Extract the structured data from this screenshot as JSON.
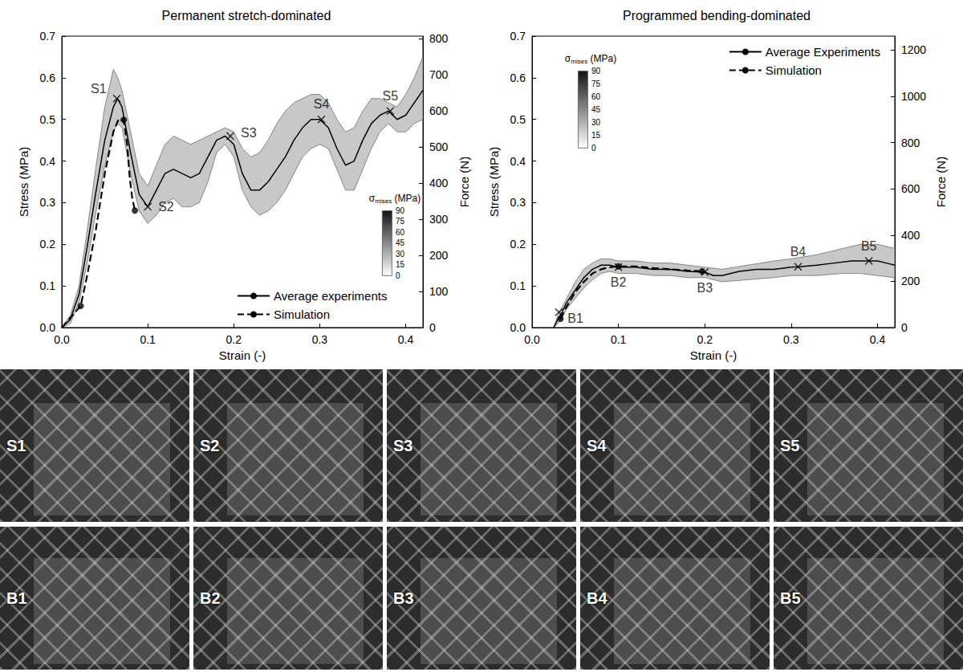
{
  "chart_data": [
    {
      "type": "line",
      "title": "Permanent stretch-dominated",
      "x_label": "Strain (-)",
      "y_label": "Stress (MPa)",
      "y2_label": "Force (N)",
      "xlim": [
        0,
        0.42
      ],
      "ylim": [
        0,
        0.7
      ],
      "y2lim": [
        0,
        807
      ],
      "xticks": [
        {
          "value": 0,
          "label": "0.0"
        },
        0.1,
        0.2,
        0.3,
        0.4
      ],
      "yticks": [
        {
          "value": 0,
          "label": "0.0"
        },
        0.1,
        0.2,
        0.3,
        0.4,
        0.5,
        0.6,
        0.7
      ],
      "y2ticks": [
        0,
        100,
        200,
        300,
        400,
        500,
        600,
        700,
        800
      ],
      "grid": false,
      "legend": "lower right",
      "colorbar": {
        "title": "σmises (MPa)",
        "range": [
          0,
          90
        ],
        "ticks": [
          0,
          15,
          30,
          45,
          60,
          75,
          90
        ]
      },
      "series": [
        {
          "type": "band",
          "color": "#c8c8c8",
          "x": [
            0,
            0.01,
            0.02,
            0.03,
            0.04,
            0.05,
            0.06,
            0.065,
            0.07,
            0.08,
            0.09,
            0.1,
            0.11,
            0.12,
            0.13,
            0.14,
            0.15,
            0.16,
            0.17,
            0.18,
            0.19,
            0.2,
            0.21,
            0.22,
            0.23,
            0.24,
            0.25,
            0.26,
            0.27,
            0.28,
            0.29,
            0.3,
            0.31,
            0.32,
            0.33,
            0.34,
            0.35,
            0.36,
            0.37,
            0.38,
            0.39,
            0.4,
            0.41,
            0.42
          ],
          "upper": [
            0,
            0.03,
            0.1,
            0.24,
            0.39,
            0.53,
            0.62,
            0.6,
            0.57,
            0.47,
            0.37,
            0.34,
            0.39,
            0.44,
            0.46,
            0.45,
            0.44,
            0.45,
            0.46,
            0.47,
            0.48,
            0.47,
            0.43,
            0.41,
            0.42,
            0.45,
            0.49,
            0.52,
            0.54,
            0.55,
            0.56,
            0.56,
            0.54,
            0.5,
            0.47,
            0.48,
            0.52,
            0.55,
            0.55,
            0.54,
            0.53,
            0.56,
            0.6,
            0.65
          ],
          "lower": [
            0,
            0.01,
            0.06,
            0.16,
            0.28,
            0.39,
            0.47,
            0.49,
            0.48,
            0.37,
            0.28,
            0.25,
            0.27,
            0.3,
            0.31,
            0.29,
            0.29,
            0.3,
            0.35,
            0.42,
            0.44,
            0.41,
            0.33,
            0.29,
            0.27,
            0.28,
            0.3,
            0.33,
            0.37,
            0.41,
            0.43,
            0.44,
            0.43,
            0.38,
            0.33,
            0.33,
            0.38,
            0.43,
            0.47,
            0.49,
            0.47,
            0.47,
            0.49,
            0.5
          ]
        },
        {
          "name": "Average experiments",
          "type": "line",
          "color": "#000000",
          "line_style": "solid",
          "x": [
            0,
            0.01,
            0.02,
            0.03,
            0.04,
            0.05,
            0.06,
            0.065,
            0.07,
            0.08,
            0.09,
            0.1,
            0.11,
            0.12,
            0.13,
            0.14,
            0.15,
            0.16,
            0.17,
            0.18,
            0.19,
            0.2,
            0.21,
            0.22,
            0.23,
            0.24,
            0.25,
            0.26,
            0.27,
            0.28,
            0.29,
            0.3,
            0.31,
            0.32,
            0.33,
            0.34,
            0.35,
            0.36,
            0.37,
            0.38,
            0.39,
            0.4,
            0.41,
            0.42
          ],
          "values": [
            0,
            0.02,
            0.08,
            0.2,
            0.33,
            0.45,
            0.53,
            0.55,
            0.53,
            0.42,
            0.32,
            0.29,
            0.33,
            0.37,
            0.38,
            0.37,
            0.36,
            0.37,
            0.41,
            0.45,
            0.46,
            0.44,
            0.37,
            0.33,
            0.33,
            0.35,
            0.38,
            0.41,
            0.45,
            0.48,
            0.5,
            0.5,
            0.48,
            0.43,
            0.39,
            0.4,
            0.45,
            0.49,
            0.51,
            0.52,
            0.5,
            0.51,
            0.54,
            0.57
          ]
        },
        {
          "name": "Simulation",
          "type": "line",
          "color": "#000000",
          "line_style": "dashed",
          "x": [
            0,
            0.022,
            0.03,
            0.04,
            0.05,
            0.06,
            0.066,
            0.072,
            0.076,
            0.079,
            0.082,
            0.085
          ],
          "values": [
            0,
            0.052,
            0.13,
            0.24,
            0.37,
            0.47,
            0.5,
            0.499,
            0.44,
            0.36,
            0.31,
            0.281
          ]
        },
        {
          "type": "scatter",
          "marker": "circle",
          "color": "#000000",
          "x": [
            0.022,
            0.072,
            0.085
          ],
          "values": [
            0.052,
            0.499,
            0.281
          ]
        },
        {
          "type": "scatter",
          "marker": "x",
          "color": "#000000",
          "labels": [
            "S1",
            "S2",
            "S3",
            "S4",
            "S5"
          ],
          "x": [
            0.064,
            0.1,
            0.196,
            0.302,
            0.382
          ],
          "values": [
            0.55,
            0.29,
            0.46,
            0.5,
            0.52
          ]
        }
      ]
    },
    {
      "type": "line",
      "title": "Programmed bending-dominated",
      "x_label": "Strain (-)",
      "y_label": "Stress (MPa)",
      "y2_label": "Force (N)",
      "xlim": [
        0,
        0.42
      ],
      "ylim": [
        0,
        0.7
      ],
      "y2lim": [
        0,
        1260
      ],
      "xticks": [
        {
          "value": 0,
          "label": "0.0"
        },
        0.1,
        0.2,
        0.3,
        0.4
      ],
      "yticks": [
        {
          "value": 0,
          "label": "0.0"
        },
        0.1,
        0.2,
        0.3,
        0.4,
        0.5,
        0.6,
        0.7
      ],
      "y2ticks": [
        0,
        200,
        400,
        600,
        800,
        1000,
        1200
      ],
      "grid": false,
      "legend": "upper right",
      "colorbar": {
        "title": "σmises (MPa)",
        "range": [
          0,
          90
        ],
        "ticks": [
          0,
          15,
          30,
          45,
          60,
          75,
          90
        ]
      },
      "series": [
        {
          "type": "band",
          "color": "#c8c8c8",
          "x": [
            0.025,
            0.03,
            0.035,
            0.04,
            0.05,
            0.06,
            0.07,
            0.08,
            0.09,
            0.1,
            0.12,
            0.14,
            0.16,
            0.18,
            0.2,
            0.22,
            0.25,
            0.28,
            0.3,
            0.33,
            0.36,
            0.38,
            0.4,
            0.42
          ],
          "upper": [
            0,
            0.03,
            0.05,
            0.07,
            0.11,
            0.14,
            0.155,
            0.165,
            0.165,
            0.16,
            0.16,
            0.155,
            0.155,
            0.15,
            0.145,
            0.14,
            0.15,
            0.16,
            0.165,
            0.175,
            0.19,
            0.2,
            0.2,
            0.19
          ],
          "lower": [
            0,
            0.01,
            0.025,
            0.045,
            0.07,
            0.095,
            0.115,
            0.13,
            0.135,
            0.13,
            0.13,
            0.125,
            0.125,
            0.12,
            0.12,
            0.11,
            0.115,
            0.12,
            0.125,
            0.125,
            0.13,
            0.13,
            0.125,
            0.12
          ]
        },
        {
          "name": "Average Experiments",
          "type": "line",
          "color": "#000000",
          "line_style": "solid",
          "x": [
            0.025,
            0.03,
            0.035,
            0.04,
            0.05,
            0.06,
            0.07,
            0.08,
            0.09,
            0.1,
            0.12,
            0.14,
            0.16,
            0.18,
            0.2,
            0.21,
            0.22,
            0.24,
            0.26,
            0.28,
            0.3,
            0.31,
            0.33,
            0.35,
            0.37,
            0.39,
            0.4,
            0.41,
            0.42
          ],
          "values": [
            0,
            0.02,
            0.038,
            0.06,
            0.09,
            0.12,
            0.14,
            0.15,
            0.15,
            0.145,
            0.145,
            0.14,
            0.14,
            0.135,
            0.133,
            0.125,
            0.125,
            0.135,
            0.14,
            0.14,
            0.145,
            0.146,
            0.15,
            0.155,
            0.16,
            0.16,
            0.16,
            0.155,
            0.15
          ]
        },
        {
          "name": "Simulation",
          "type": "line",
          "color": "#000000",
          "line_style": "dashed",
          "x": [
            0.033,
            0.04,
            0.05,
            0.06,
            0.07,
            0.08,
            0.09,
            0.1,
            0.12,
            0.14,
            0.16,
            0.18,
            0.197
          ],
          "values": [
            0.021,
            0.05,
            0.085,
            0.11,
            0.13,
            0.14,
            0.145,
            0.147,
            0.147,
            0.143,
            0.14,
            0.137,
            0.135
          ]
        },
        {
          "type": "scatter",
          "marker": "circle",
          "color": "#000000",
          "x": [
            0.033,
            0.1,
            0.197
          ],
          "values": [
            0.021,
            0.147,
            0.135
          ]
        },
        {
          "type": "scatter",
          "marker": "x",
          "color": "#000000",
          "labels": [
            "B1",
            "B2",
            "B3",
            "B4",
            "B5"
          ],
          "x": [
            0.031,
            0.1,
            0.2,
            0.308,
            0.39
          ],
          "values": [
            0.037,
            0.145,
            0.133,
            0.146,
            0.16
          ]
        }
      ]
    }
  ],
  "photos": {
    "rows": [
      [
        "S1",
        "S2",
        "S3",
        "S4",
        "S5"
      ],
      [
        "B1",
        "B2",
        "B3",
        "B4",
        "B5"
      ]
    ]
  }
}
